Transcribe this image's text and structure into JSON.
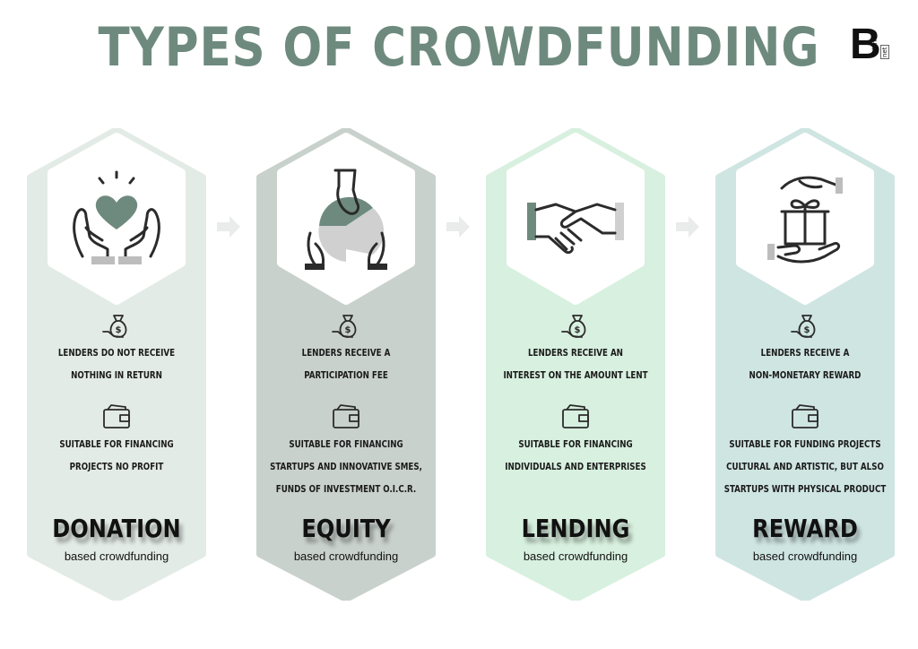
{
  "title": "TYPES OF CROWDFUNDING",
  "logo": {
    "letter": "B",
    "sub": "plan",
    "sub_badge": "net"
  },
  "colors": {
    "title": "#6e8a7e",
    "arrow": "#e9ecea"
  },
  "cards": [
    {
      "name": "DONATION",
      "subtitle": "based crowdfunding",
      "icon": "hands-heart-icon",
      "color": "#e3ebe6",
      "text1": [
        "LENDERS DO NOT RECEIVE",
        "NOTHING IN RETURN"
      ],
      "text2": [
        "SUITABLE FOR FINANCING",
        "PROJECTS NO PROFIT"
      ]
    },
    {
      "name": "EQUITY",
      "subtitle": "based crowdfunding",
      "icon": "hands-pie-share-icon",
      "color": "#c9d1cd",
      "text1": [
        "LENDERS RECEIVE A",
        "PARTICIPATION FEE"
      ],
      "text2": [
        "SUITABLE FOR FINANCING",
        "STARTUPS AND INNOVATIVE SMES,",
        "FUNDS OF INVESTMENT O.I.C.R."
      ]
    },
    {
      "name": "LENDING",
      "subtitle": "based crowdfunding",
      "icon": "handshake-icon",
      "color": "#d8f0df",
      "text1": [
        "LENDERS RECEIVE AN",
        "INTEREST ON THE AMOUNT LENT"
      ],
      "text2": [
        "SUITABLE FOR FINANCING",
        "INDIVIDUALS AND ENTERPRISES"
      ]
    },
    {
      "name": "REWARD",
      "subtitle": "based crowdfunding",
      "icon": "hands-gift-icon",
      "color": "#cfe5e2",
      "text1": [
        "LENDERS RECEIVE A",
        "NON-MONETARY REWARD"
      ],
      "text2": [
        "SUITABLE FOR FUNDING PROJECTS",
        "CULTURAL AND ARTISTIC, BUT ALSO",
        "STARTUPS WITH PHYSICAL PRODUCT"
      ]
    }
  ]
}
